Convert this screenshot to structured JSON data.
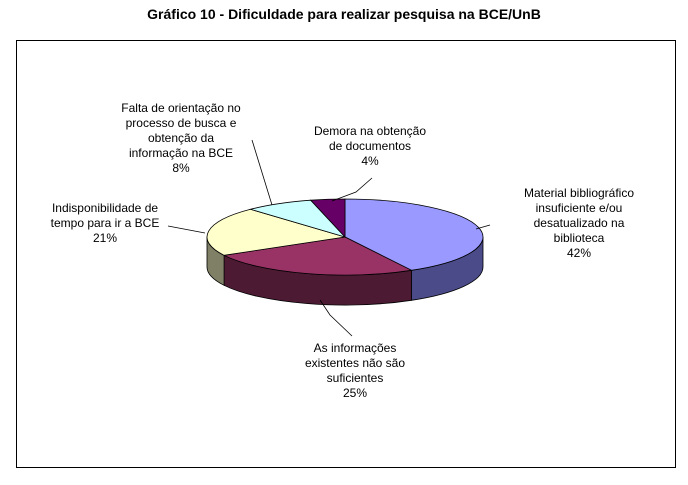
{
  "chart_data": {
    "type": "pie",
    "title": "Gráfico 10 - Dificuldade para realizar pesquisa na BCE/UnB",
    "slices": [
      {
        "lines": [
          "Material bibliográfico",
          "insuficiente e/ou",
          "desatualizado na",
          "biblioteca"
        ],
        "value": 42,
        "value_label": "42%",
        "color": "#9999FF",
        "side_color": "#4B4B8A"
      },
      {
        "lines": [
          "As informações",
          "existentes não são",
          "suficientes"
        ],
        "value": 25,
        "value_label": "25%",
        "color": "#993366",
        "side_color": "#4D1A33"
      },
      {
        "lines": [
          "Indisponibilidade de",
          "tempo para ir a BCE"
        ],
        "value": 21,
        "value_label": "21%",
        "color": "#FFFFCC",
        "side_color": "#808066"
      },
      {
        "lines": [
          "Falta de orientação no",
          "processo de busca e",
          "obtenção da",
          "informação na BCE"
        ],
        "value": 8,
        "value_label": "8%",
        "color": "#CCFFFF",
        "side_color": "#668080"
      },
      {
        "lines": [
          "Demora na obtenção",
          "de documentos"
        ],
        "value": 4,
        "value_label": "4%",
        "color": "#660066",
        "side_color": "#330033"
      }
    ]
  }
}
